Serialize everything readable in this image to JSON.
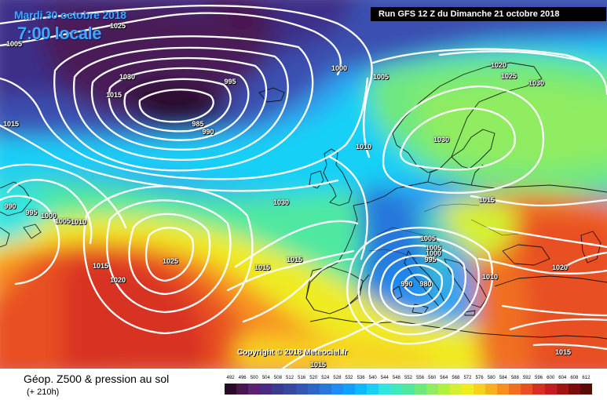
{
  "header": {
    "date": "Mardi 30 octobre 2018",
    "time": "7:00 locale",
    "run": "Run GFS 12 Z du Dimanche 21 octobre 2018"
  },
  "copyright": "Copyright © 2018 Meteociel.fr",
  "footer": {
    "product": "Géop. Z500 & pression au sol",
    "lead": "(+ 210h)"
  },
  "isobar_labels": [
    "1025",
    "1005",
    "1030",
    "1015",
    "995",
    "985",
    "990",
    "1000",
    "1005",
    "1020",
    "1025",
    "1030",
    "1030",
    "1010",
    "1015",
    "990",
    "995",
    "1000",
    "1005",
    "1010",
    "1015",
    "1020",
    "1025",
    "1030",
    "1015",
    "1005",
    "1005",
    "1000",
    "995",
    "1015",
    "990",
    "980",
    "1010",
    "1020",
    "1015",
    "1015",
    "1015"
  ],
  "scale": {
    "values": [
      492,
      496,
      500,
      504,
      508,
      512,
      516,
      520,
      524,
      528,
      532,
      536,
      540,
      544,
      548,
      552,
      556,
      560,
      564,
      568,
      572,
      576,
      580,
      584,
      588,
      592,
      596,
      600,
      604,
      608,
      612
    ],
    "colors": [
      "#2a0a2a",
      "#4a1650",
      "#5a2270",
      "#4a2a80",
      "#3a3a90",
      "#3848a0",
      "#3456b4",
      "#2e66c8",
      "#2878dc",
      "#1e8cf0",
      "#12a0ff",
      "#10b8ff",
      "#18d0f6",
      "#30e4e0",
      "#40e8c0",
      "#50e8a0",
      "#70e880",
      "#90ec60",
      "#b4f040",
      "#d4f030",
      "#f0ec20",
      "#f8d020",
      "#f8b020",
      "#f89020",
      "#f07020",
      "#e85020",
      "#d83020",
      "#c41c1c",
      "#a01414",
      "#7c0c0c",
      "#5a0808"
    ]
  }
}
